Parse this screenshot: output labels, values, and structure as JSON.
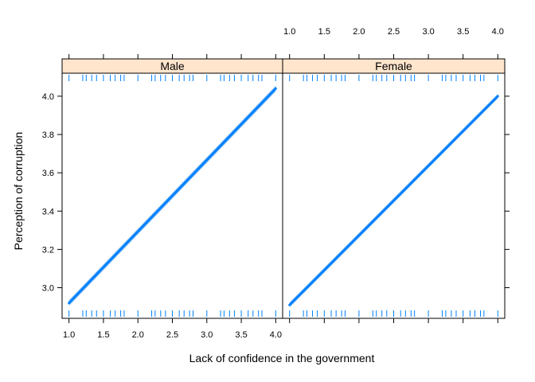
{
  "chart_data": {
    "type": "line",
    "xlabel": "Lack of confidence in the government",
    "ylabel": "Perception of corruption",
    "xlim": [
      0.9,
      4.1
    ],
    "ylim": [
      2.84,
      4.12
    ],
    "xticks": [
      1.0,
      1.5,
      2.0,
      2.5,
      3.0,
      3.5,
      4.0
    ],
    "xtick_labels": [
      "1.0",
      "1.5",
      "2.0",
      "2.5",
      "3.0",
      "3.5",
      "4.0"
    ],
    "yticks": [
      3.0,
      3.2,
      3.4,
      3.6,
      3.8,
      4.0
    ],
    "ytick_labels": [
      "3.0",
      "3.2",
      "3.4",
      "3.6",
      "3.8",
      "4.0"
    ],
    "line_color": "#0080ff",
    "band_color": "#8fc4f0",
    "strip_color": "#ffe5cc",
    "rug_color": "#0080ff",
    "grid": false,
    "rug_x": [
      1.0,
      1.2,
      1.25,
      1.33,
      1.4,
      1.5,
      1.6,
      1.67,
      1.75,
      1.8,
      2.0,
      2.2,
      2.25,
      2.33,
      2.4,
      2.5,
      2.6,
      2.67,
      2.75,
      2.8,
      3.0,
      3.2,
      3.25,
      3.33,
      3.4,
      3.5,
      3.6,
      3.67,
      3.75,
      3.8,
      4.0
    ],
    "panels": [
      {
        "name": "Male",
        "x": [
          1.0,
          4.0
        ],
        "y": [
          2.92,
          4.04
        ],
        "lower": [
          2.905,
          4.025
        ],
        "upper": [
          2.935,
          4.055
        ]
      },
      {
        "name": "Female",
        "x": [
          1.0,
          4.0
        ],
        "y": [
          2.91,
          4.0
        ],
        "lower": [
          2.897,
          3.988
        ],
        "upper": [
          2.923,
          4.012
        ]
      }
    ]
  }
}
